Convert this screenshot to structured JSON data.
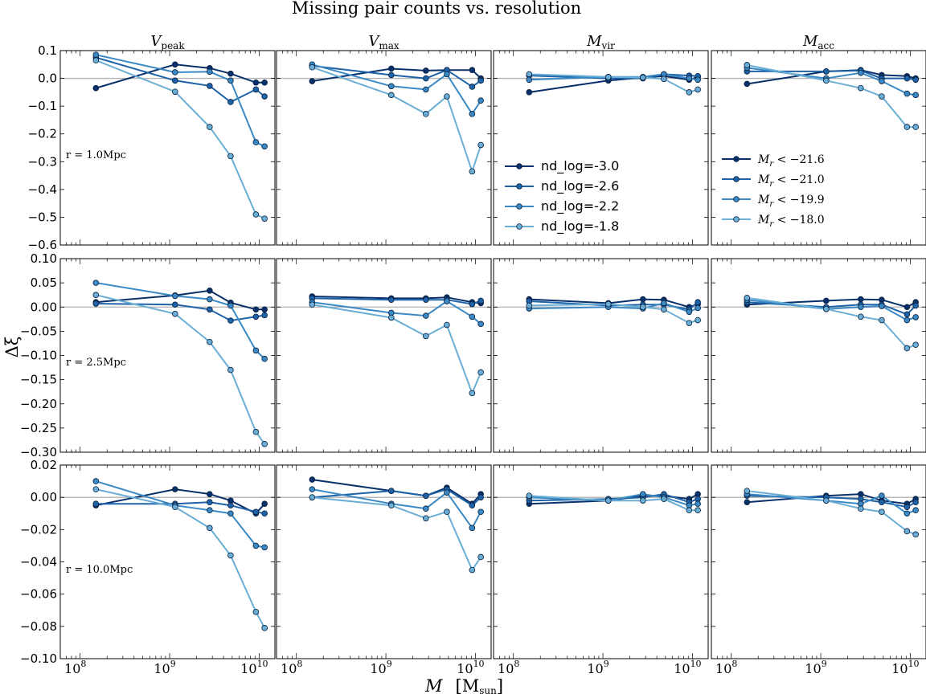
{
  "title": "Missing pair counts vs. resolution",
  "chart_data": {
    "type": "line",
    "title": "Missing pair counts vs. resolution",
    "xlabel": "M  [M_sun]",
    "ylabel": "Δξ",
    "x_scale": "log",
    "xlim": [
      60000000,
      15000000000
    ],
    "x_tick_labels": [
      "10^8",
      "10^9",
      "10^10"
    ],
    "x": [
      150000000,
      1150000000,
      2800000000,
      4800000000,
      9200000000,
      11500000000
    ],
    "columns": [
      {
        "name": "V",
        "sub": "peak"
      },
      {
        "name": "V",
        "sub": "max"
      },
      {
        "name": "M",
        "sub": "vir"
      },
      {
        "name": "M",
        "sub": "acc"
      }
    ],
    "rows": [
      {
        "label": "r = 1.0Mpc",
        "ylim": [
          -0.6,
          0.1
        ],
        "yticks": [
          "0.1",
          "0.0",
          "−0.1",
          "−0.2",
          "−0.3",
          "−0.4",
          "−0.5",
          "−0.6"
        ],
        "ytick_values": [
          0.1,
          0.0,
          -0.1,
          -0.2,
          -0.3,
          -0.4,
          -0.5,
          -0.6
        ]
      },
      {
        "label": "r = 2.5Mpc",
        "ylim": [
          -0.3,
          0.1
        ],
        "yticks": [
          "0.10",
          "0.05",
          "0.00",
          "−0.05",
          "−0.10",
          "−0.15",
          "−0.20",
          "−0.25",
          "−0.30"
        ],
        "ytick_values": [
          0.1,
          0.05,
          0.0,
          -0.05,
          -0.1,
          -0.15,
          -0.2,
          -0.25,
          -0.3
        ]
      },
      {
        "label": "r = 10.0Mpc",
        "ylim": [
          -0.1,
          0.02
        ],
        "yticks": [
          "0.02",
          "0.00",
          "−0.02",
          "−0.04",
          "−0.06",
          "−0.08",
          "−0.10"
        ],
        "ytick_values": [
          0.02,
          0.0,
          -0.02,
          -0.04,
          -0.06,
          -0.08,
          -0.1
        ]
      }
    ],
    "colors": [
      "#08306b",
      "#1e63a8",
      "#3a89c4",
      "#6aaed6"
    ],
    "legends": [
      {
        "panel": [
          0,
          2
        ],
        "entries": [
          "nd_log=-3.0",
          "nd_log=-2.6",
          "nd_log=-2.2",
          "nd_log=-1.8"
        ]
      },
      {
        "panel": [
          0,
          3
        ],
        "entries": [
          "M_r < −21.6",
          "M_r < −21.0",
          "M_r < −19.9",
          "M_r < −18.0"
        ]
      }
    ],
    "panels": [
      [
        [
          [
            -0.035,
            0.05,
            0.037,
            0.017,
            -0.015,
            -0.015
          ],
          [
            0.075,
            -0.008,
            -0.027,
            -0.085,
            -0.04,
            -0.065
          ],
          [
            0.085,
            0.022,
            0.024,
            -0.008,
            -0.23,
            -0.245
          ],
          [
            0.065,
            -0.048,
            -0.175,
            -0.28,
            -0.49,
            -0.505
          ]
        ],
        [
          [
            -0.01,
            0.035,
            0.028,
            0.03,
            0.03,
            0.0
          ],
          [
            0.045,
            0.012,
            0.0,
            0.03,
            -0.03,
            -0.008
          ],
          [
            0.05,
            -0.028,
            -0.04,
            0.015,
            -0.128,
            -0.08
          ],
          [
            0.04,
            -0.06,
            -0.128,
            -0.065,
            -0.335,
            -0.24
          ]
        ],
        [
          [
            -0.05,
            -0.008,
            0.003,
            0.008,
            -0.005,
            0.005
          ],
          [
            0.01,
            0.0,
            0.0,
            0.015,
            0.01,
            0.008
          ],
          [
            -0.005,
            0.005,
            0.005,
            0.015,
            0.0,
            -0.005
          ],
          [
            0.015,
            0.005,
            0.003,
            -0.002,
            -0.05,
            -0.04
          ]
        ],
        [
          [
            -0.02,
            0.025,
            0.03,
            0.012,
            0.008,
            0.0
          ],
          [
            0.025,
            0.025,
            0.028,
            0.0,
            0.0,
            -0.005
          ],
          [
            0.038,
            0.0,
            0.02,
            -0.01,
            -0.055,
            -0.06
          ],
          [
            0.048,
            -0.008,
            -0.035,
            -0.065,
            -0.175,
            -0.175
          ]
        ]
      ],
      [
        [
          [
            0.01,
            0.024,
            0.034,
            0.009,
            -0.005,
            -0.005
          ],
          [
            0.007,
            0.005,
            -0.005,
            -0.028,
            -0.02,
            -0.017
          ],
          [
            0.05,
            0.023,
            0.016,
            0.003,
            -0.09,
            -0.107
          ],
          [
            0.025,
            -0.014,
            -0.072,
            -0.13,
            -0.258,
            -0.283
          ]
        ],
        [
          [
            0.022,
            0.018,
            0.018,
            0.02,
            0.01,
            0.008
          ],
          [
            0.018,
            0.015,
            0.015,
            0.015,
            0.006,
            0.013
          ],
          [
            0.01,
            -0.012,
            -0.018,
            0.012,
            -0.02,
            -0.035
          ],
          [
            0.005,
            -0.022,
            -0.06,
            -0.037,
            -0.178,
            -0.135
          ]
        ],
        [
          [
            0.016,
            0.008,
            0.016,
            0.015,
            0.0,
            0.006
          ],
          [
            0.012,
            0.003,
            0.005,
            0.005,
            -0.005,
            0.01
          ],
          [
            -0.003,
            0.0,
            -0.003,
            0.008,
            -0.01,
            -0.002
          ],
          [
            0.003,
            0.006,
            0.0,
            -0.005,
            -0.033,
            -0.027
          ]
        ],
        [
          [
            0.005,
            0.013,
            0.016,
            0.015,
            0.0,
            0.01
          ],
          [
            0.01,
            0.0,
            0.005,
            0.005,
            -0.015,
            0.003
          ],
          [
            0.015,
            -0.004,
            0.0,
            0.002,
            -0.027,
            -0.021
          ],
          [
            0.019,
            -0.004,
            -0.02,
            -0.027,
            -0.085,
            -0.078
          ]
        ]
      ],
      [
        [
          [
            -0.005,
            0.005,
            0.002,
            -0.002,
            -0.01,
            -0.004
          ],
          [
            -0.004,
            -0.004,
            -0.003,
            -0.005,
            -0.009,
            -0.01
          ],
          [
            0.01,
            -0.005,
            -0.008,
            -0.01,
            -0.03,
            -0.031
          ],
          [
            0.005,
            -0.006,
            -0.019,
            -0.036,
            -0.071,
            -0.081
          ]
        ],
        [
          [
            0.011,
            0.004,
            0.001,
            0.006,
            -0.004,
            0.002
          ],
          [
            0.0,
            0.004,
            0.001,
            0.005,
            -0.005,
            0.0
          ],
          [
            0.005,
            -0.004,
            -0.007,
            0.003,
            -0.019,
            -0.009
          ],
          [
            0.0,
            -0.005,
            -0.013,
            -0.009,
            -0.045,
            -0.037
          ]
        ],
        [
          [
            -0.004,
            -0.002,
            0.001,
            0.001,
            -0.001,
            0.002
          ],
          [
            -0.002,
            -0.001,
            0.0,
            0.002,
            -0.003,
            -0.001
          ],
          [
            0.0,
            -0.002,
            0.002,
            0.0,
            -0.005,
            -0.004
          ],
          [
            0.001,
            -0.002,
            -0.002,
            -0.001,
            -0.008,
            -0.008
          ]
        ],
        [
          [
            -0.003,
            0.001,
            0.002,
            -0.002,
            -0.004,
            -0.001
          ],
          [
            0.001,
            0.0,
            -0.001,
            -0.003,
            -0.006,
            -0.003
          ],
          [
            0.002,
            -0.002,
            -0.004,
            0.001,
            -0.01,
            -0.008
          ],
          [
            0.004,
            -0.002,
            -0.007,
            -0.009,
            -0.021,
            -0.023
          ]
        ]
      ]
    ]
  }
}
